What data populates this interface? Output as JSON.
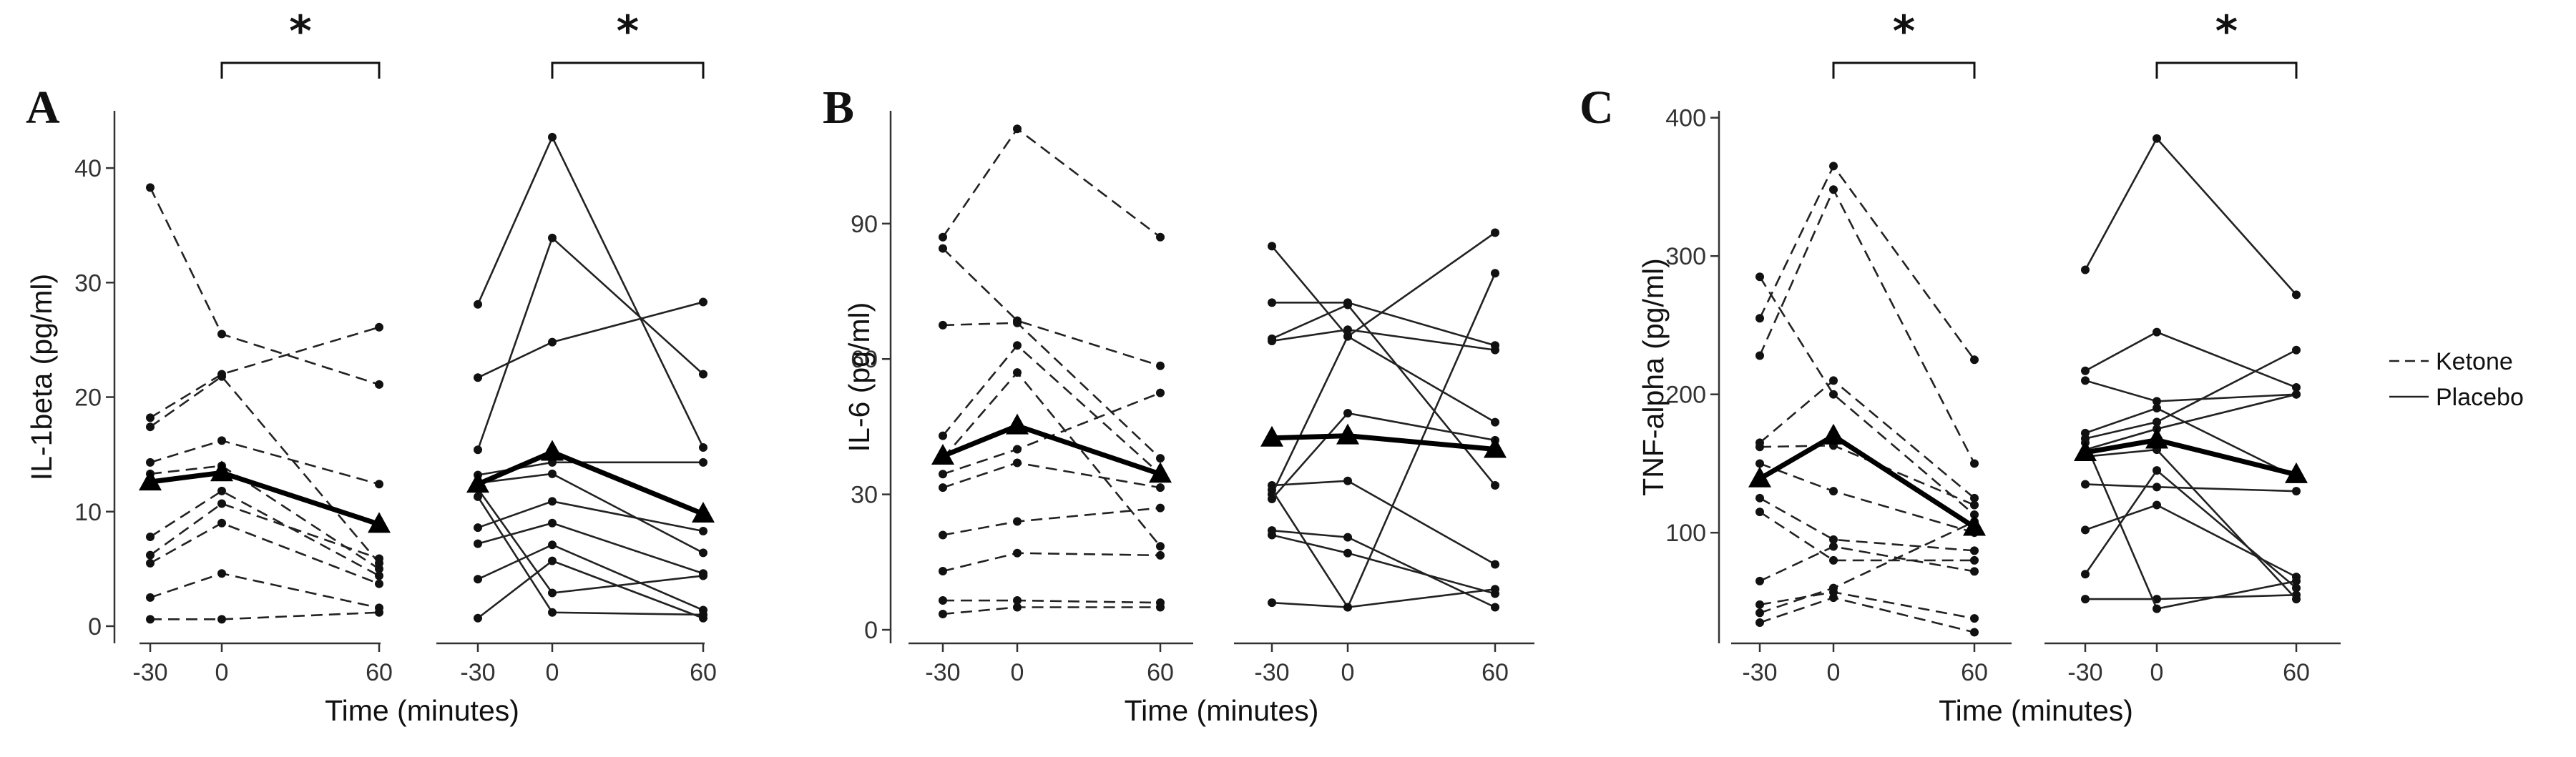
{
  "chart_data": [
    {
      "type": "line",
      "panel_label": "A",
      "ylabel": "IL-1beta (pg/ml)",
      "xlabel": "Time (minutes)",
      "x_ticks": [
        "-30",
        "0",
        "60"
      ],
      "y_ticks": [
        0,
        10,
        20,
        30,
        40
      ],
      "ylim": [
        -1.5,
        45
      ],
      "significance": "*",
      "groups": [
        {
          "name": "Ketone",
          "mean": [
            12.6,
            13.4,
            8.9
          ],
          "subjects": [
            [
              38.3,
              25.5,
              21.1
            ],
            [
              18.2,
              22.0,
              26.1
            ],
            [
              17.4,
              21.8,
              5.5
            ],
            [
              14.3,
              16.2,
              12.4
            ],
            [
              13.3,
              14.0,
              5.0
            ],
            [
              7.8,
              11.8,
              4.4
            ],
            [
              6.2,
              10.7,
              5.9
            ],
            [
              5.5,
              9.0,
              3.7
            ],
            [
              2.5,
              4.6,
              1.6
            ],
            [
              0.6,
              0.6,
              1.2
            ]
          ]
        },
        {
          "name": "Placebo",
          "mean": [
            12.4,
            15.2,
            9.8
          ],
          "subjects": [
            [
              28.1,
              42.7,
              15.6
            ],
            [
              21.7,
              24.8,
              28.3
            ],
            [
              15.4,
              33.9,
              22.0
            ],
            [
              13.2,
              14.3,
              14.3
            ],
            [
              12.5,
              13.3,
              6.4
            ],
            [
              8.6,
              10.9,
              8.3
            ],
            [
              7.2,
              9.0,
              4.6
            ],
            [
              4.1,
              7.1,
              1.4
            ],
            [
              0.7,
              5.7,
              0.7
            ],
            [
              12.0,
              2.9,
              4.4
            ],
            [
              11.3,
              1.2,
              1.0
            ]
          ]
        }
      ]
    },
    {
      "type": "line",
      "panel_label": "B",
      "ylabel": "IL-6 (pg/ml)",
      "xlabel": "Time (minutes)",
      "x_ticks": [
        "-30",
        "0",
        "60"
      ],
      "y_ticks": [
        0,
        30,
        60,
        90
      ],
      "ylim": [
        -3,
        115
      ],
      "significance": "",
      "groups": [
        {
          "name": "Ketone",
          "mean": [
            38.5,
            45.2,
            34.5
          ],
          "subjects": [
            [
              87.0,
              111.0,
              87.0
            ],
            [
              84.5,
              68.5,
              58.5
            ],
            [
              67.5,
              68.0,
              38.0
            ],
            [
              43.0,
              63.0,
              34.5
            ],
            [
              38.0,
              57.0,
              18.5
            ],
            [
              34.5,
              40.0,
              52.5
            ],
            [
              31.5,
              37.0,
              31.5
            ],
            [
              21.0,
              24.0,
              27.0
            ],
            [
              13.0,
              17.0,
              16.5
            ],
            [
              6.5,
              6.5,
              6.0
            ],
            [
              3.5,
              5.0,
              5.0
            ]
          ]
        },
        {
          "name": "Placebo",
          "mean": [
            42.5,
            43.0,
            40.0
          ],
          "subjects": [
            [
              85.0,
              65.0,
              46.0
            ],
            [
              72.5,
              72.5,
              63.0
            ],
            [
              64.5,
              72.0,
              32.0
            ],
            [
              64.0,
              66.5,
              62.0
            ],
            [
              32.0,
              33.0,
              14.5
            ],
            [
              30.0,
              65.0,
              88.0
            ],
            [
              29.0,
              48.0,
              42.0
            ],
            [
              22.0,
              20.5,
              5.0
            ],
            [
              21.0,
              17.0,
              8.0
            ],
            [
              6.0,
              5.0,
              79.0
            ],
            [
              31.0,
              5.0,
              9.0
            ]
          ]
        }
      ]
    },
    {
      "type": "line",
      "panel_label": "C",
      "ylabel": "TNF-alpha (pg/ml)",
      "xlabel": "Time (minutes)",
      "x_ticks": [
        "-30",
        "0",
        "60"
      ],
      "y_ticks": [
        100,
        200,
        300,
        400
      ],
      "ylim": [
        20,
        405
      ],
      "significance": "*",
      "groups": [
        {
          "name": "Ketone",
          "mean": [
            139,
            170,
            104
          ],
          "subjects": [
            [
              285,
              200,
              113
            ],
            [
              255,
              365,
              225
            ],
            [
              228,
              348,
              150
            ],
            [
              165,
              210,
              125
            ],
            [
              162,
              163,
              120
            ],
            [
              150,
              130,
              100
            ],
            [
              125,
              95,
              87
            ],
            [
              115,
              80,
              80
            ],
            [
              65,
              90,
              72
            ],
            [
              48,
              57,
              38
            ],
            [
              35,
              53,
              28
            ],
            [
              42,
              60,
              108
            ]
          ]
        },
        {
          "name": "Placebo",
          "mean": [
            158,
            167,
            142
          ],
          "subjects": [
            [
              290,
              385,
              272
            ],
            [
              217,
              245,
              205
            ],
            [
              210,
              195,
              200
            ],
            [
              172,
              190,
              140
            ],
            [
              168,
              180,
              232
            ],
            [
              160,
              175,
              200
            ],
            [
              135,
              133,
              130
            ],
            [
              102,
              120,
              68
            ],
            [
              70,
              145,
              60
            ],
            [
              52,
              52,
              55
            ],
            [
              165,
              45,
              65
            ],
            [
              155,
              160,
              52
            ]
          ]
        }
      ]
    }
  ],
  "legend": {
    "entries": [
      {
        "label": "Ketone",
        "style": "dashed"
      },
      {
        "label": "Placebo",
        "style": "solid"
      }
    ]
  }
}
